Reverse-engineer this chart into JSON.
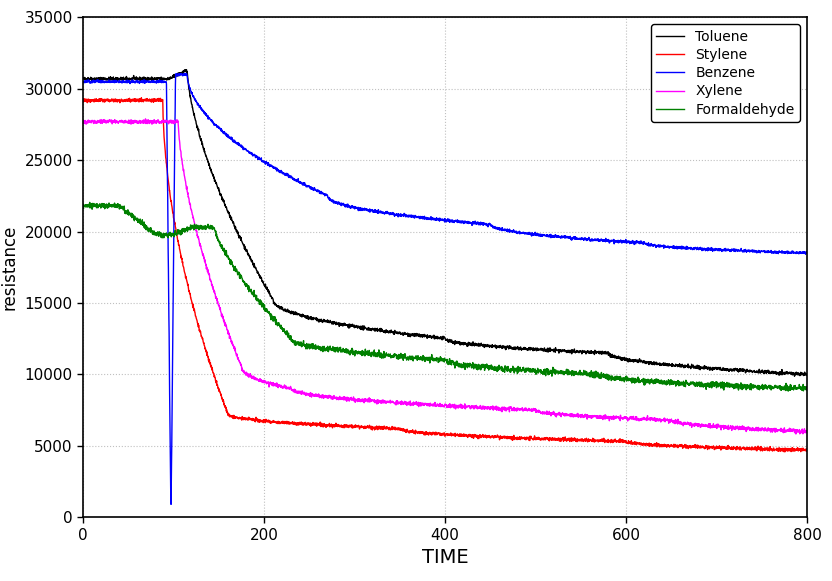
{
  "title": "",
  "xlabel": "TIME",
  "ylabel": "resistance",
  "xlim": [
    0,
    800
  ],
  "ylim": [
    0,
    35000
  ],
  "xticks": [
    0,
    200,
    400,
    600,
    800
  ],
  "yticks": [
    0,
    5000,
    10000,
    15000,
    20000,
    25000,
    30000,
    35000
  ],
  "legend": [
    "Toluene",
    "Stylene",
    "Benzene",
    "Xylene",
    "Formaldehyde"
  ],
  "colors": [
    "#000000",
    "#ff0000",
    "#0000ff",
    "#ff00ff",
    "#008000"
  ],
  "background_color": "#ffffff",
  "grid_color": "#c0c0c0",
  "figsize": [
    8.32,
    5.81
  ],
  "dpi": 100
}
